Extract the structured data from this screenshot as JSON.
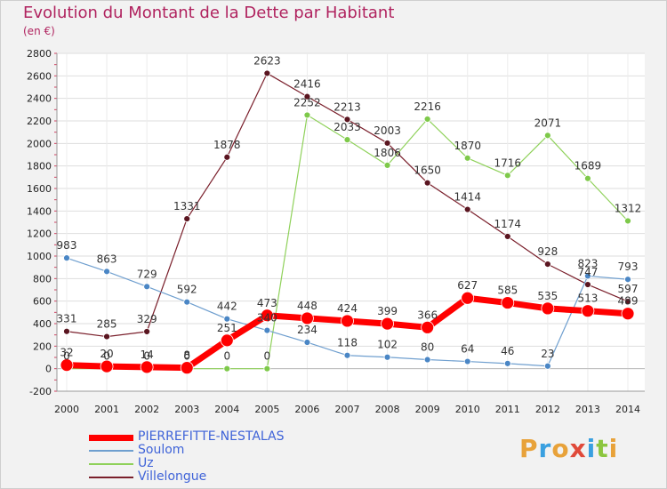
{
  "title": "Evolution du Montant de la Dette par Habitant",
  "subtitle": "(en €)",
  "logo": {
    "text": "Proxiti",
    "colors": [
      "#e8a23a",
      "#3aa0e0",
      "#e8a23a",
      "#e04a3a",
      "#3aa0e0",
      "#8cc63f",
      "#e8a23a"
    ]
  },
  "chart_data": {
    "type": "line",
    "title": "Evolution du Montant de la Dette par Habitant",
    "subtitle": "(en €)",
    "x": [
      "2000",
      "2001",
      "2002",
      "2003",
      "2004",
      "2005",
      "2006",
      "2007",
      "2008",
      "2009",
      "2010",
      "2011",
      "2012",
      "2013",
      "2014"
    ],
    "ylim": [
      -200,
      2800
    ],
    "yticks": [
      -200,
      0,
      200,
      400,
      600,
      800,
      1000,
      1200,
      1400,
      1600,
      1800,
      2000,
      2200,
      2400,
      2600,
      2800
    ],
    "grid": true,
    "legend_position": "bottom-left",
    "series": [
      {
        "name": "Villelongue",
        "color": "#7a1f2b",
        "marker": "#5a1520",
        "width": 1.2,
        "r": 3.5,
        "values": [
          331,
          285,
          329,
          1331,
          1878,
          2623,
          2416,
          2213,
          2003,
          1650,
          1414,
          1174,
          928,
          747,
          597
        ],
        "labels": [
          "331",
          "285",
          "329",
          "1331",
          "1878",
          "2623",
          "2416",
          "2213",
          "2003",
          "1650",
          "1414",
          "1174",
          "928",
          "747",
          "597"
        ]
      },
      {
        "name": "Uz",
        "color": "#8fd15a",
        "marker": "#7ec94a",
        "width": 1.2,
        "r": 3.5,
        "values": [
          0,
          0,
          0,
          0,
          0,
          0,
          2252,
          2033,
          1806,
          2216,
          1870,
          1716,
          2071,
          1689,
          1312
        ],
        "labels": [
          "0",
          "0",
          "0",
          "0",
          "0",
          "0",
          "2252",
          "2033",
          "1806",
          "2216",
          "1870",
          "1716",
          "2071",
          "1689",
          "1312"
        ]
      },
      {
        "name": "Soulom",
        "color": "#6f9fcf",
        "marker": "#4a86c5",
        "width": 1.2,
        "r": 3.5,
        "values": [
          983,
          863,
          729,
          592,
          442,
          340,
          234,
          118,
          102,
          80,
          64,
          46,
          23,
          823,
          793
        ],
        "labels": [
          "983",
          "863",
          "729",
          "592",
          "442",
          "340",
          "234",
          "118",
          "102",
          "80",
          "64",
          "46",
          "23",
          "823",
          "793"
        ]
      },
      {
        "name": "PIERREFITTE-NESTALAS",
        "color": "#ff0000",
        "marker": "#ff0000",
        "width": 7,
        "r": 7,
        "values": [
          32,
          20,
          14,
          8,
          251,
          473,
          448,
          424,
          399,
          366,
          627,
          585,
          535,
          513,
          489
        ],
        "labels": [
          "32",
          "20",
          "14",
          "8",
          "251",
          "473",
          "448",
          "424",
          "399",
          "366",
          "627",
          "585",
          "535",
          "513",
          "489"
        ]
      }
    ]
  },
  "legend": [
    {
      "label": "PIERREFITTE-NESTALAS",
      "color": "#ff0000",
      "thick": 7
    },
    {
      "label": "Soulom",
      "color": "#6f9fcf",
      "thick": 2
    },
    {
      "label": "Uz",
      "color": "#8fd15a",
      "thick": 2
    },
    {
      "label": "Villelongue",
      "color": "#7a1f2b",
      "thick": 2
    }
  ]
}
